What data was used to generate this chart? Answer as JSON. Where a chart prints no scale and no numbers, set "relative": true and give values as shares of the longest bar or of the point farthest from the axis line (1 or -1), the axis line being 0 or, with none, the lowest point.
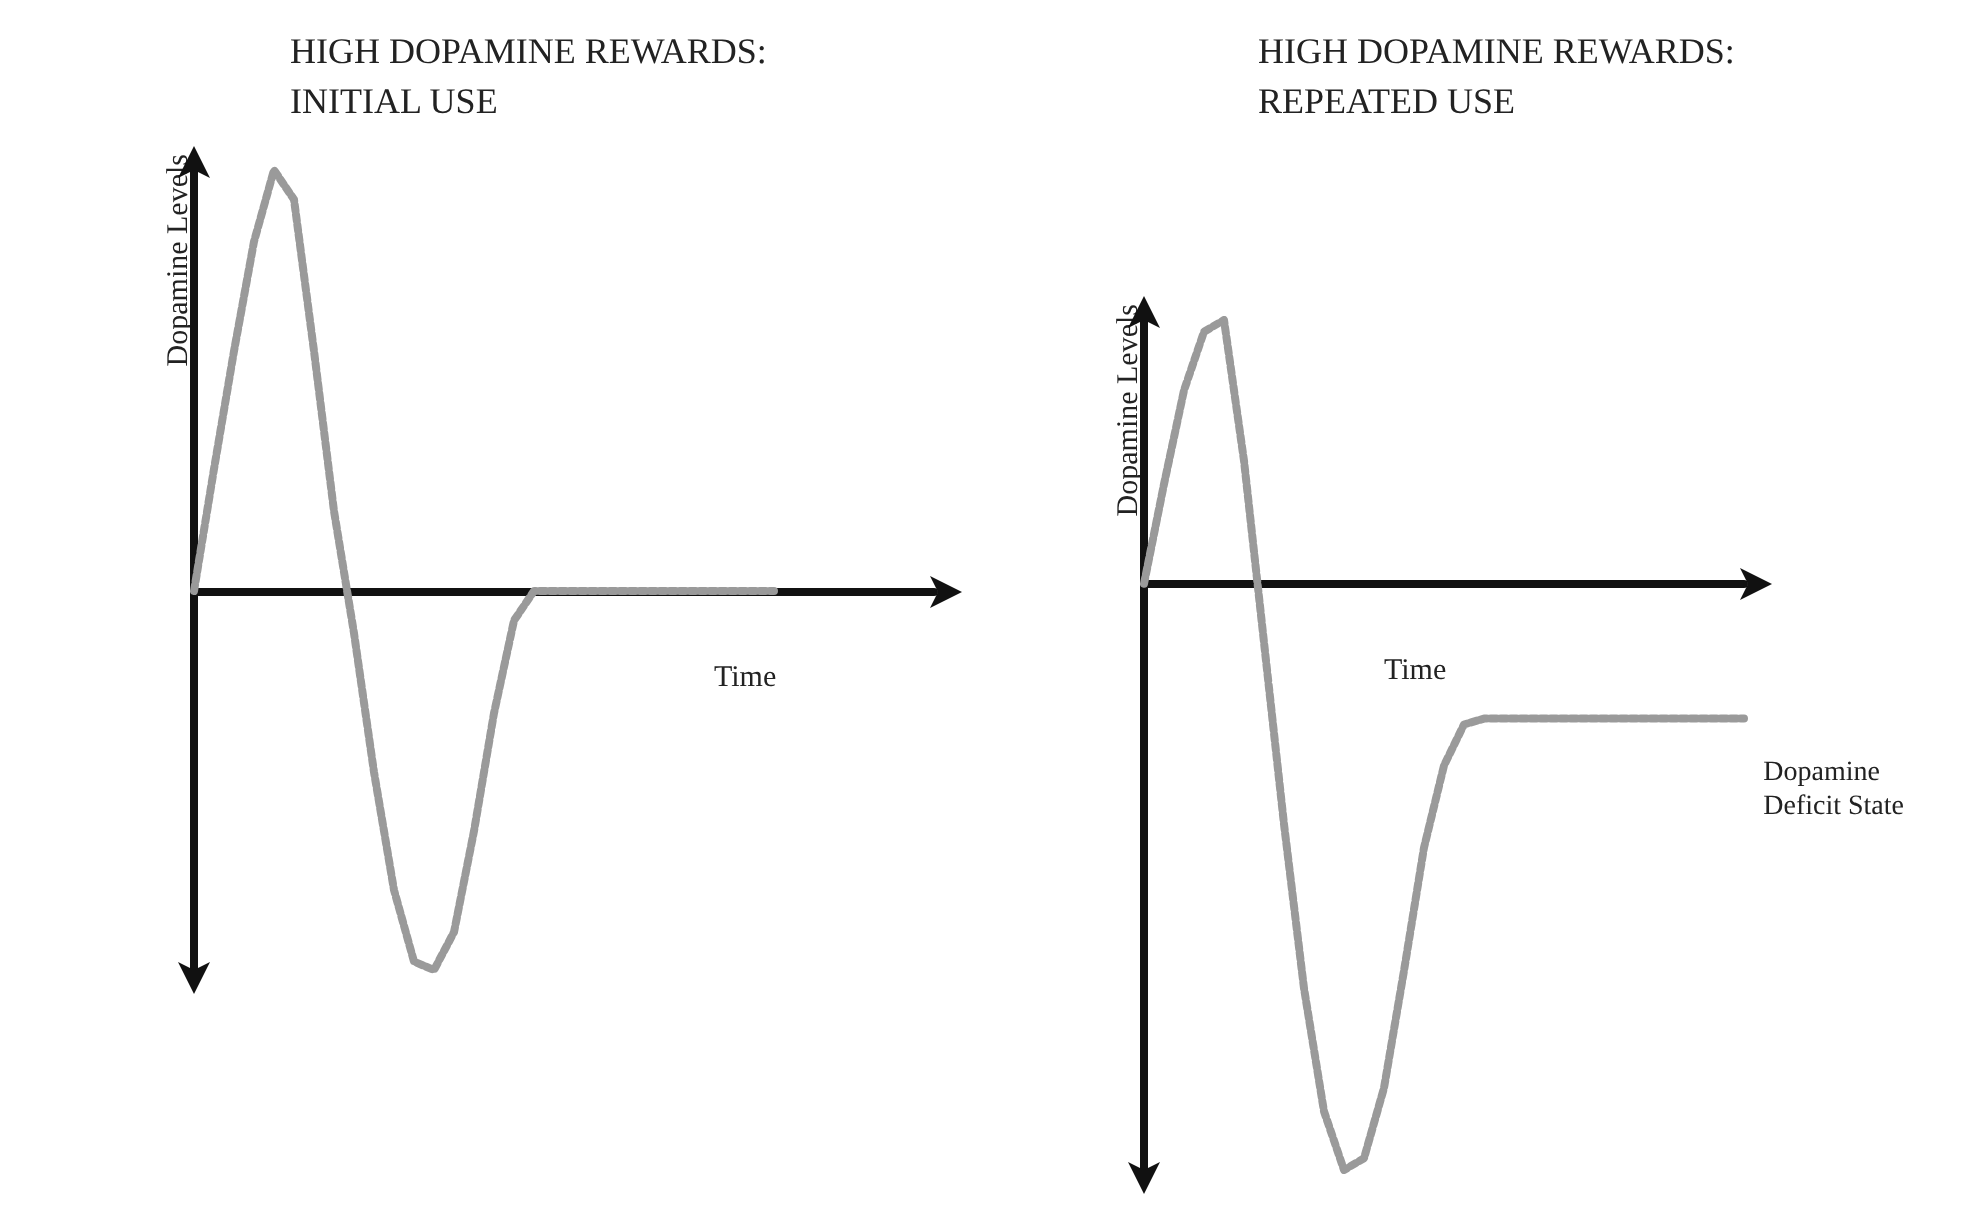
{
  "chart_data": [
    {
      "type": "line",
      "title": "HIGH DOPAMINE REWARDS:\nINITIAL USE",
      "xlabel": "Time",
      "ylabel": "Dopamine Levels",
      "relative": true,
      "line_style": "dotted",
      "marker": "none",
      "grid": false,
      "categories": [
        null,
        null,
        null,
        null,
        null,
        null,
        null,
        null,
        null,
        null,
        null,
        null,
        null,
        null,
        null,
        null,
        null,
        null,
        null,
        null,
        null,
        null,
        null,
        null,
        null,
        null,
        null,
        null,
        null,
        null,
        null,
        null,
        null,
        null,
        null,
        null,
        null,
        null
      ],
      "series": [
        {
          "color": "#9a9a9a",
          "values": [
            0,
            0.29,
            0.57,
            0.83,
            1,
            0.93,
            0.57,
            0.19,
            -0.1,
            -0.43,
            -0.71,
            -0.88,
            -0.9,
            -0.81,
            -0.57,
            -0.29,
            -0.07,
            0,
            0,
            0,
            0,
            0,
            0,
            0,
            0,
            0,
            0,
            0,
            0,
            0,
            null,
            null,
            null,
            null,
            null,
            null,
            null,
            null
          ]
        }
      ]
    },
    {
      "type": "line",
      "title": "HIGH DOPAMINE REWARDS:\nREPEATED USE",
      "xlabel": "Time",
      "ylabel": "Dopamine Levels",
      "relative": true,
      "line_style": "dotted",
      "marker": "none",
      "grid": false,
      "annotations": [
        "Dopamine\nDeficit State"
      ],
      "categories": [
        null,
        null,
        null,
        null,
        null,
        null,
        null,
        null,
        null,
        null,
        null,
        null,
        null,
        null,
        null,
        null,
        null,
        null,
        null,
        null,
        null,
        null,
        null,
        null,
        null,
        null,
        null,
        null,
        null,
        null,
        null
      ],
      "series": [
        {
          "color": "#9a9a9a",
          "values": [
            0,
            0.17,
            0.33,
            0.43,
            0.45,
            0.21,
            -0.1,
            -0.41,
            -0.69,
            -0.9,
            -1,
            -0.98,
            -0.86,
            -0.66,
            -0.45,
            -0.31,
            -0.24,
            -0.23,
            -0.23,
            -0.23,
            -0.23,
            -0.23,
            -0.23,
            -0.23,
            -0.23,
            -0.23,
            -0.23,
            -0.23,
            -0.23,
            -0.23,
            -0.23
          ]
        }
      ]
    }
  ]
}
